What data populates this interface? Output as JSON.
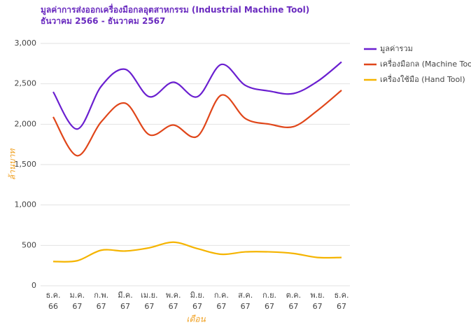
{
  "chart_data": {
    "type": "line",
    "title": "มูลค่าการส่งออกเครื่องมือกลอุตสาหกรรม (Industrial Machine Tool) ธันวาคม 2566 - ธันวาคม 2567",
    "y_label": "ล้านบาท",
    "x_label": "เดือน",
    "categories": [
      [
        "ธ.ค.",
        "66"
      ],
      [
        "ม.ค.",
        "67"
      ],
      [
        "ก.พ.",
        "67"
      ],
      [
        "มี.ค.",
        "67"
      ],
      [
        "เม.ย.",
        "67"
      ],
      [
        "พ.ค.",
        "67"
      ],
      [
        "มิ.ย.",
        "67"
      ],
      [
        "ก.ค.",
        "67"
      ],
      [
        "ส.ค.",
        "67"
      ],
      [
        "ก.ย.",
        "67"
      ],
      [
        "ต.ค.",
        "67"
      ],
      [
        "พ.ย.",
        "67"
      ],
      [
        "ธ.ค.",
        "67"
      ]
    ],
    "series": [
      {
        "name": "มูลค่ารวม",
        "color": "#6a1fd0",
        "values": [
          2400,
          1940,
          2470,
          2680,
          2340,
          2520,
          2340,
          2740,
          2480,
          2410,
          2380,
          2530,
          2770
        ]
      },
      {
        "name": "เครื่องมือกล (Machine Tool)",
        "color": "#e0461a",
        "values": [
          2090,
          1610,
          2030,
          2260,
          1870,
          1990,
          1850,
          2360,
          2070,
          2000,
          1970,
          2170,
          2420
        ]
      },
      {
        "name": "เครื่องใช้มือ (Hand Tool)",
        "color": "#f5b400",
        "values": [
          300,
          310,
          440,
          430,
          470,
          540,
          460,
          390,
          420,
          420,
          400,
          350,
          350
        ]
      }
    ],
    "ylim": [
      0,
      3000
    ],
    "yticks": [
      0,
      500,
      {
        "value": 1000,
        "label": "1,000"
      },
      {
        "value": 1500,
        "label": "1,500"
      },
      {
        "value": 2000,
        "label": "2,000"
      },
      {
        "value": 2500,
        "label": "2,500"
      },
      {
        "value": 3000,
        "label": "3,000"
      }
    ],
    "grid": true,
    "legend": "right"
  }
}
